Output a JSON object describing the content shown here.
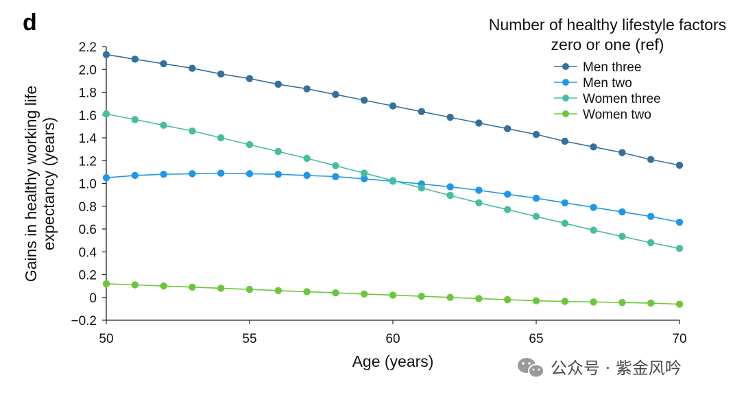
{
  "panel_label": "d",
  "watermark": {
    "text": "公众号 · 紫金风吟",
    "icon": "wechat-icon"
  },
  "chart_data": {
    "type": "line",
    "title": "",
    "xlabel": "Age (years)",
    "ylabel_lines": [
      "Gains in healthy working life",
      "expectancy (years)"
    ],
    "xlim": [
      50,
      70
    ],
    "ylim": [
      -0.2,
      2.2
    ],
    "x_ticks": [
      50,
      55,
      60,
      65,
      70
    ],
    "y_ticks": [
      -0.2,
      0,
      0.2,
      0.4,
      0.6,
      0.8,
      1.0,
      1.2,
      1.4,
      1.6,
      1.8,
      2.0,
      2.2
    ],
    "y_tick_labels": [
      "−0.2",
      "0",
      "0.2",
      "0.4",
      "0.6",
      "0.8",
      "1.0",
      "1.2",
      "1.4",
      "1.6",
      "1.8",
      "2.0",
      "2.2"
    ],
    "grid": false,
    "legend": {
      "title_lines": [
        "Number of healthy lifestyle factors",
        "zero or one (ref)"
      ],
      "placement": "top-right"
    },
    "x": [
      50,
      51,
      52,
      53,
      54,
      55,
      56,
      57,
      58,
      59,
      60,
      61,
      62,
      63,
      64,
      65,
      66,
      67,
      68,
      69,
      70
    ],
    "series": [
      {
        "name": "Men three",
        "color": "#33709e",
        "values": [
          2.13,
          2.09,
          2.05,
          2.01,
          1.96,
          1.92,
          1.87,
          1.83,
          1.78,
          1.73,
          1.68,
          1.63,
          1.58,
          1.53,
          1.48,
          1.43,
          1.37,
          1.32,
          1.27,
          1.21,
          1.16
        ]
      },
      {
        "name": "Men two",
        "color": "#1f97e8",
        "values": [
          1.05,
          1.07,
          1.08,
          1.085,
          1.09,
          1.085,
          1.08,
          1.07,
          1.06,
          1.04,
          1.02,
          0.995,
          0.97,
          0.94,
          0.905,
          0.87,
          0.83,
          0.79,
          0.75,
          0.71,
          0.66
        ]
      },
      {
        "name": "Women three",
        "color": "#46bda0",
        "values": [
          1.61,
          1.56,
          1.51,
          1.46,
          1.4,
          1.34,
          1.28,
          1.22,
          1.155,
          1.09,
          1.025,
          0.96,
          0.895,
          0.83,
          0.77,
          0.71,
          0.65,
          0.59,
          0.535,
          0.48,
          0.43
        ]
      },
      {
        "name": "Women two",
        "color": "#6cc63b",
        "values": [
          0.12,
          0.11,
          0.1,
          0.09,
          0.08,
          0.07,
          0.06,
          0.05,
          0.04,
          0.03,
          0.02,
          0.01,
          0.0,
          -0.01,
          -0.02,
          -0.03,
          -0.035,
          -0.04,
          -0.045,
          -0.05,
          -0.06
        ]
      }
    ]
  }
}
